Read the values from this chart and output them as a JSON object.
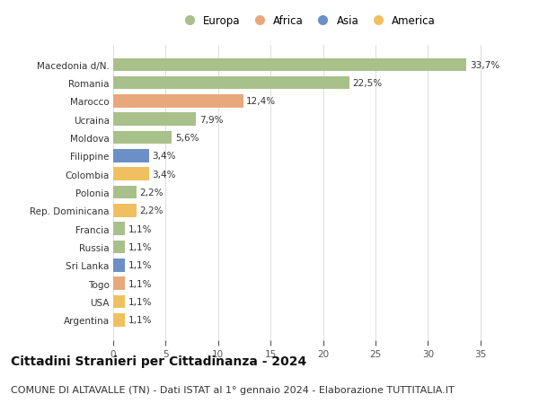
{
  "countries": [
    "Macedonia d/N.",
    "Romania",
    "Marocco",
    "Ucraina",
    "Moldova",
    "Filippine",
    "Colombia",
    "Polonia",
    "Rep. Dominicana",
    "Francia",
    "Russia",
    "Sri Lanka",
    "Togo",
    "USA",
    "Argentina"
  ],
  "values": [
    33.7,
    22.5,
    12.4,
    7.9,
    5.6,
    3.4,
    3.4,
    2.2,
    2.2,
    1.1,
    1.1,
    1.1,
    1.1,
    1.1,
    1.1
  ],
  "labels": [
    "33,7%",
    "22,5%",
    "12,4%",
    "7,9%",
    "5,6%",
    "3,4%",
    "3,4%",
    "2,2%",
    "2,2%",
    "1,1%",
    "1,1%",
    "1,1%",
    "1,1%",
    "1,1%",
    "1,1%"
  ],
  "continents": [
    "Europa",
    "Europa",
    "Africa",
    "Europa",
    "Europa",
    "Asia",
    "America",
    "Europa",
    "America",
    "Europa",
    "Europa",
    "Asia",
    "Africa",
    "America",
    "America"
  ],
  "continent_colors": {
    "Europa": "#a8c08a",
    "Africa": "#e8a87c",
    "Asia": "#6b8fc7",
    "America": "#f0c060"
  },
  "legend_order": [
    "Europa",
    "Africa",
    "Asia",
    "America"
  ],
  "title": "Cittadini Stranieri per Cittadinanza - 2024",
  "subtitle": "COMUNE DI ALTAVALLE (TN) - Dati ISTAT al 1° gennaio 2024 - Elaborazione TUTTITALIA.IT",
  "xlim": [
    0,
    37
  ],
  "xticks": [
    0,
    5,
    10,
    15,
    20,
    25,
    30,
    35
  ],
  "background_color": "#ffffff",
  "grid_color": "#e0e0e0",
  "bar_height": 0.72,
  "title_fontsize": 10,
  "subtitle_fontsize": 8,
  "label_fontsize": 7.5,
  "tick_fontsize": 7.5,
  "legend_fontsize": 8.5
}
